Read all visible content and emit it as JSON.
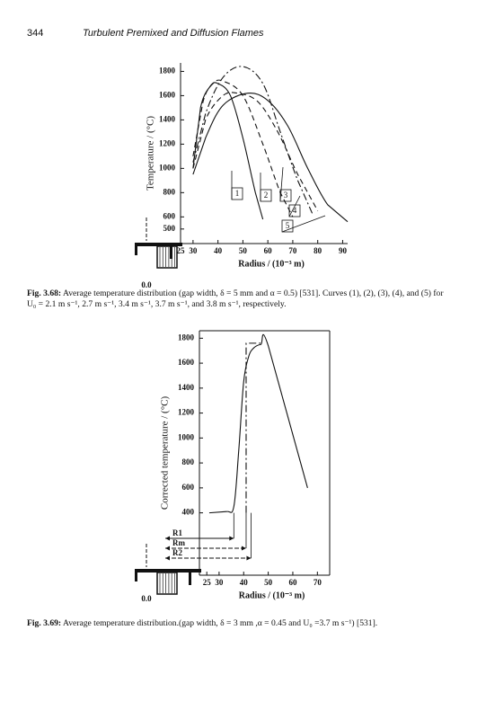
{
  "header": {
    "page_number": "344",
    "title": "Turbulent Premixed and Diffusion Flames"
  },
  "chart_data": [
    {
      "type": "line",
      "ylabel": "Temperature / (°C)",
      "xlabel": "Radius / (10⁻³ m)",
      "origin_label": "0.0",
      "caption_label": "Fig. 3.68:",
      "caption": "Average temperature distribution (gap width, δ = 5 mm and α = 0.5) [531]. Curves (1), (2), (3), (4), and (5) for U₀ = 2.1 m s⁻¹, 2.7 m s⁻¹, 3.4 m s⁻¹, 3.7 m s⁻¹, and 3.8 m s⁻¹, respectively.",
      "xlim": [
        25,
        92
      ],
      "xticks": [
        25,
        30,
        40,
        50,
        60,
        70,
        80,
        90
      ],
      "ylim": [
        380,
        1870
      ],
      "yticks": [
        500,
        600,
        800,
        1000,
        1200,
        1400,
        1600,
        1800
      ],
      "frame": false,
      "series": [
        {
          "name": "1",
          "color": "#111111",
          "dash": "solid",
          "x": [
            30,
            33,
            37,
            40,
            45,
            50,
            55,
            58
          ],
          "values": [
            1000,
            1500,
            1680,
            1700,
            1600,
            1250,
            800,
            580
          ]
        },
        {
          "name": "2",
          "color": "#111111",
          "dash": "dashed",
          "x": [
            30,
            34,
            38,
            42,
            50,
            58,
            65,
            70
          ],
          "values": [
            1100,
            1550,
            1700,
            1720,
            1600,
            1200,
            800,
            600
          ]
        },
        {
          "name": "3",
          "color": "#111111",
          "dash": "dashdot",
          "x": [
            30,
            35,
            42,
            50,
            58,
            65,
            72,
            78
          ],
          "values": [
            1050,
            1450,
            1750,
            1840,
            1700,
            1300,
            900,
            620
          ]
        },
        {
          "name": "4",
          "color": "#111111",
          "dash": "dashed",
          "x": [
            30,
            35,
            42,
            48,
            56,
            64,
            72,
            80
          ],
          "values": [
            1000,
            1400,
            1600,
            1620,
            1550,
            1300,
            950,
            650
          ]
        },
        {
          "name": "5",
          "color": "#111111",
          "dash": "solid",
          "x": [
            30,
            35,
            42,
            52,
            60,
            68,
            76,
            84,
            92
          ],
          "values": [
            950,
            1250,
            1520,
            1620,
            1560,
            1350,
            1000,
            700,
            560
          ]
        }
      ]
    },
    {
      "type": "line",
      "ylabel": "Corrected temperature / (°C)",
      "xlabel": "Radius / (10⁻³ m)",
      "origin_label": "0.0",
      "caption_label": "Fig. 3.69:",
      "caption": "Average temperature distribution.(gap width, δ = 3 mm ,α = 0.45 and U₀ =3.7 m s⁻¹) [531].",
      "xlim": [
        22,
        75
      ],
      "xticks": [
        25,
        30,
        40,
        50,
        60,
        70
      ],
      "ylim": [
        -100,
        1860
      ],
      "yticks": [
        400,
        600,
        800,
        1000,
        1200,
        1400,
        1600,
        1800
      ],
      "frame": true,
      "series": [
        {
          "color": "#111111",
          "dash": "solid",
          "x": [
            26,
            33,
            36,
            38,
            40,
            42,
            44,
            47,
            50,
            66
          ],
          "values": [
            400,
            410,
            450,
            900,
            1450,
            1650,
            1720,
            1750,
            1740,
            600
          ]
        },
        {
          "color": "#111111",
          "dash": "dashdot",
          "x": [
            41,
            41,
            47
          ],
          "values": [
            400,
            1760,
            1760
          ]
        }
      ],
      "annotations": [
        {
          "label": "R1",
          "x": 36
        },
        {
          "label": "Rm",
          "x": 41
        },
        {
          "label": "R2",
          "x": 43
        }
      ]
    }
  ]
}
